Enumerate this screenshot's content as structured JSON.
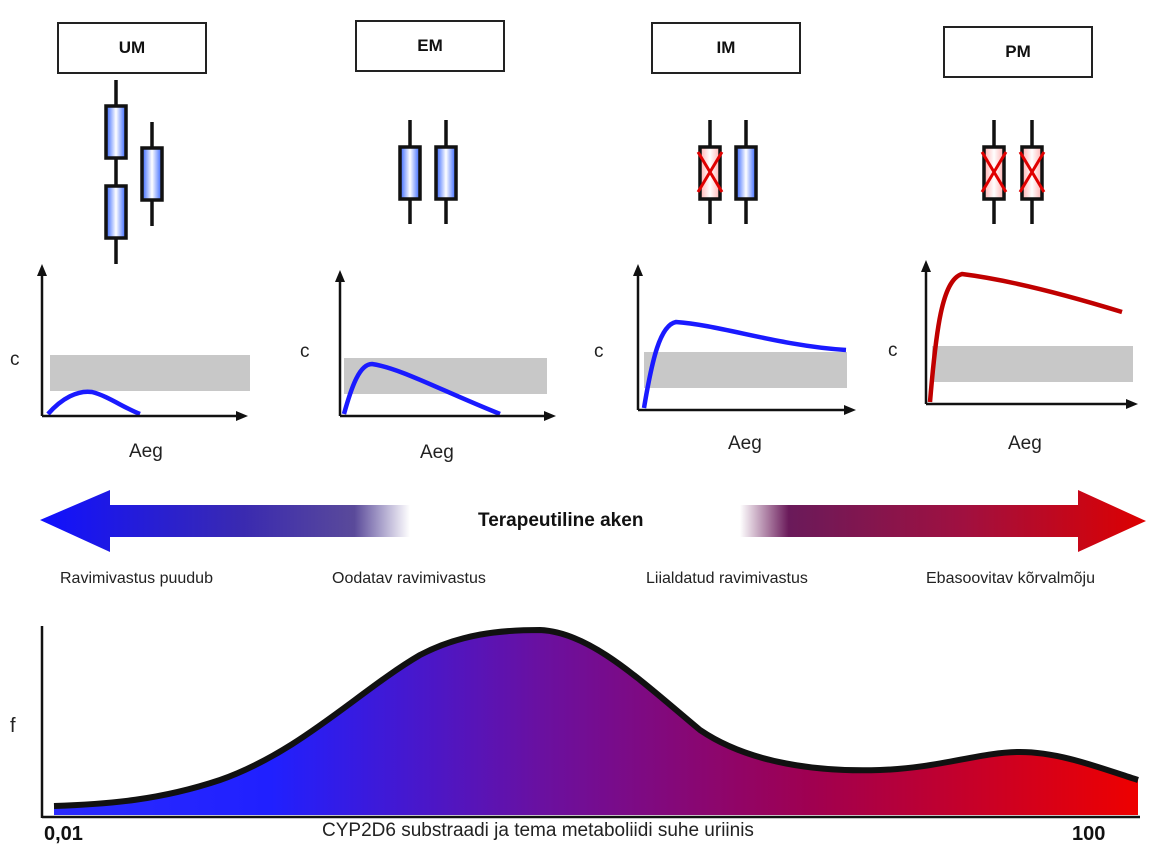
{
  "phenotypes": [
    {
      "label": "UM",
      "allele_state": "duplicated-functional"
    },
    {
      "label": "EM",
      "allele_state": "two-functional"
    },
    {
      "label": "IM",
      "allele_state": "one-nonfunctional"
    },
    {
      "label": "PM",
      "allele_state": "two-nonfunctional"
    }
  ],
  "pk_curves": {
    "y_label": "c",
    "x_label": "Aeg",
    "colors": {
      "functional": "#1a1aff",
      "nonfunctional": "#c00000",
      "window": "#c8c8c8"
    }
  },
  "therapeutic_window": {
    "label": "Terapeutiline aken",
    "left_color": "#1010ff",
    "right_color": "#cc0000"
  },
  "responses": [
    "Ravimivastus puudub",
    "Oodatav ravimivastus",
    "Liialdatud ravimivastus",
    "Ebasoovitav kõrvalmõju"
  ],
  "distribution": {
    "y_label": "f",
    "x_label": "CYP2D6 substraadi ja tema metaboliidi suhe uriinis",
    "x_min_label": "0,01",
    "x_max_label": "100"
  }
}
